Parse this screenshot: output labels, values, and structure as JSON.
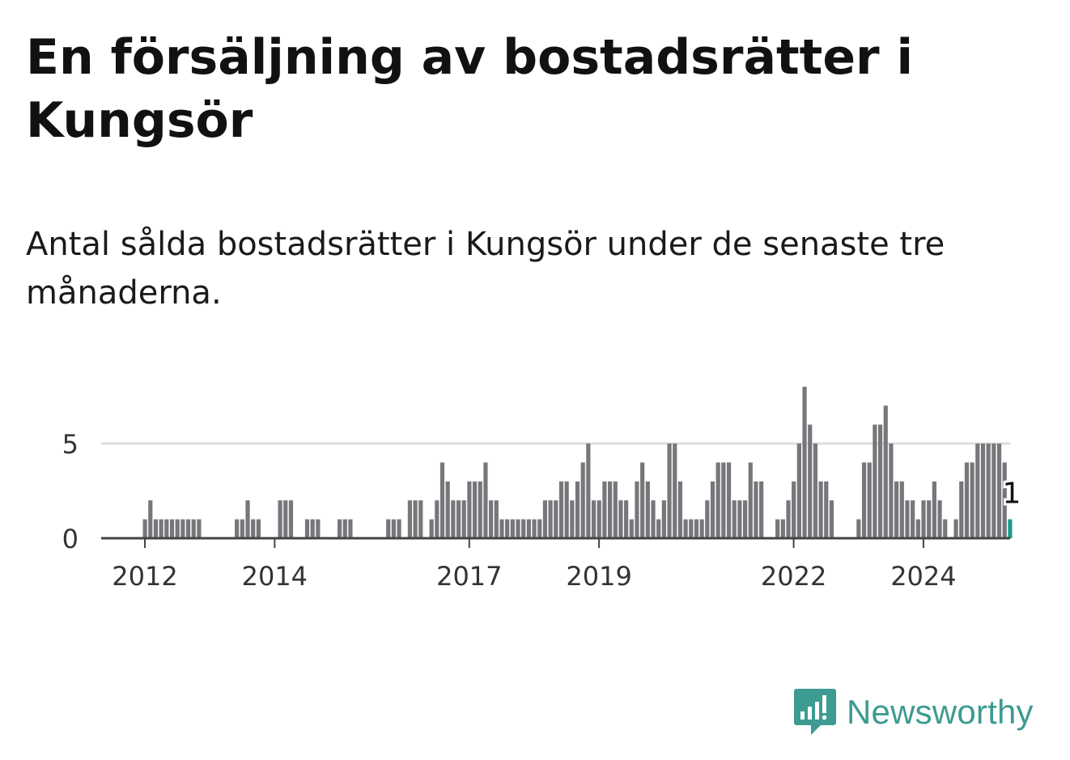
{
  "title": "En försäljning av bostadsrätter i Kungsör",
  "subtitle": "Antal sålda bostadsrätter i Kungsör under de senaste tre månaderna.",
  "brand": {
    "name": "Newsworthy",
    "icon": "newsworthy-logo-icon"
  },
  "colors": {
    "bar": "#77767b",
    "highlight": "#1a9c8c",
    "grid": "#dddddd",
    "axis": "#444444",
    "brand": "#3d9b91"
  },
  "chart_data": {
    "type": "bar",
    "x_start": "2011-01",
    "x_unit": "month",
    "values": [
      0,
      0,
      0,
      0,
      0,
      0,
      0,
      0,
      1,
      2,
      1,
      1,
      1,
      1,
      1,
      1,
      1,
      1,
      1,
      0,
      0,
      0,
      0,
      0,
      0,
      1,
      1,
      2,
      1,
      1,
      0,
      0,
      0,
      2,
      2,
      2,
      0,
      0,
      1,
      1,
      1,
      0,
      0,
      0,
      1,
      1,
      1,
      0,
      0,
      0,
      0,
      0,
      0,
      1,
      1,
      1,
      0,
      2,
      2,
      2,
      0,
      1,
      2,
      4,
      3,
      2,
      2,
      2,
      3,
      3,
      3,
      4,
      2,
      2,
      1,
      1,
      1,
      1,
      1,
      1,
      1,
      1,
      2,
      2,
      2,
      3,
      3,
      2,
      3,
      4,
      5,
      2,
      2,
      3,
      3,
      3,
      2,
      2,
      1,
      3,
      4,
      3,
      2,
      1,
      2,
      5,
      5,
      3,
      1,
      1,
      1,
      1,
      2,
      3,
      4,
      4,
      4,
      2,
      2,
      2,
      4,
      3,
      3,
      0,
      0,
      1,
      1,
      2,
      3,
      5,
      8,
      6,
      5,
      3,
      3,
      2,
      0,
      0,
      0,
      0,
      1,
      4,
      4,
      6,
      6,
      7,
      5,
      3,
      3,
      2,
      2,
      1,
      2,
      2,
      3,
      2,
      1,
      0,
      1,
      3,
      4,
      4,
      5,
      5,
      5,
      5,
      5,
      4,
      1
    ],
    "highlight_label": "1",
    "x_ticks": [
      "2012",
      "2014",
      "2017",
      "2019",
      "2022",
      "2024"
    ],
    "x_tick_months": [
      12,
      36,
      72,
      96,
      132,
      156
    ],
    "y_ticks": [
      "0",
      "5"
    ],
    "y_tick_values": [
      0,
      5
    ],
    "ylim": [
      0,
      8
    ],
    "grid": true
  }
}
